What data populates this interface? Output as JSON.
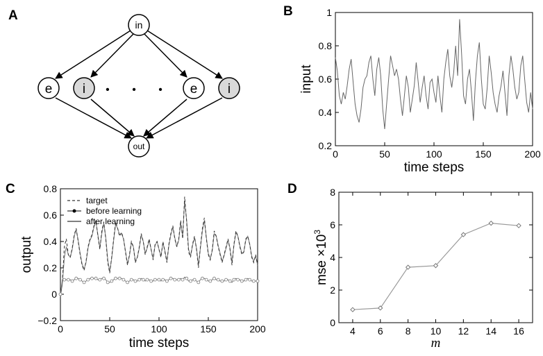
{
  "panels": {
    "a": {
      "letter": "A"
    },
    "b": {
      "letter": "B"
    },
    "c": {
      "letter": "C"
    },
    "d": {
      "letter": "D"
    }
  },
  "diagram": {
    "input_node": "in",
    "output_node": "out",
    "hidden_nodes": [
      "e",
      "i",
      "e",
      "i"
    ],
    "ellipsis": "• • •"
  },
  "chart_data": [
    {
      "id": "B",
      "type": "line",
      "xlabel": "time steps",
      "ylabel": "input",
      "xlim": [
        0,
        200
      ],
      "ylim": [
        0.2,
        1.0
      ],
      "xticks": [
        0,
        50,
        100,
        150,
        200
      ],
      "yticks": [
        0.2,
        0.4,
        0.6,
        0.8,
        1
      ],
      "ytick_labels": [
        "0.2",
        "0.4",
        "0.6",
        "0.8",
        "1"
      ],
      "series": [
        {
          "x": [
            0,
            2,
            4,
            6,
            8,
            10,
            12,
            14,
            16,
            18,
            20,
            22,
            24,
            26,
            28,
            30,
            32,
            34,
            36,
            38,
            40,
            42,
            44,
            46,
            48,
            50,
            52,
            54,
            56,
            58,
            60,
            62,
            64,
            66,
            68,
            70,
            72,
            74,
            76,
            78,
            80,
            82,
            84,
            86,
            88,
            90,
            92,
            94,
            96,
            98,
            100,
            102,
            104,
            106,
            108,
            110,
            112,
            114,
            116,
            118,
            120,
            122,
            124,
            126,
            128,
            130,
            132,
            134,
            136,
            138,
            140,
            142,
            144,
            146,
            148,
            150,
            152,
            154,
            156,
            158,
            160,
            162,
            164,
            166,
            168,
            170,
            172,
            174,
            176,
            178,
            180,
            182,
            184,
            186,
            188,
            190,
            192,
            194,
            196,
            198,
            200
          ],
          "y": [
            0.73,
            0.65,
            0.5,
            0.45,
            0.52,
            0.48,
            0.56,
            0.66,
            0.72,
            0.58,
            0.45,
            0.38,
            0.34,
            0.42,
            0.55,
            0.6,
            0.62,
            0.7,
            0.74,
            0.6,
            0.5,
            0.66,
            0.73,
            0.62,
            0.42,
            0.3,
            0.45,
            0.6,
            0.74,
            0.68,
            0.62,
            0.66,
            0.6,
            0.48,
            0.38,
            0.5,
            0.62,
            0.55,
            0.4,
            0.48,
            0.56,
            0.7,
            0.58,
            0.46,
            0.55,
            0.62,
            0.5,
            0.42,
            0.58,
            0.6,
            0.52,
            0.46,
            0.62,
            0.5,
            0.4,
            0.6,
            0.7,
            0.78,
            0.62,
            0.55,
            0.64,
            0.8,
            0.62,
            0.96,
            0.75,
            0.5,
            0.45,
            0.6,
            0.66,
            0.52,
            0.35,
            0.58,
            0.74,
            0.82,
            0.6,
            0.45,
            0.42,
            0.55,
            0.74,
            0.64,
            0.52,
            0.45,
            0.4,
            0.5,
            0.56,
            0.65,
            0.52,
            0.38,
            0.62,
            0.74,
            0.66,
            0.55,
            0.48,
            0.52,
            0.68,
            0.74,
            0.6,
            0.46,
            0.4,
            0.52,
            0.42
          ]
        }
      ]
    },
    {
      "id": "C",
      "type": "line",
      "xlabel": "time steps",
      "ylabel": "output",
      "xlim": [
        0,
        200
      ],
      "ylim": [
        -0.2,
        0.8
      ],
      "xticks": [
        0,
        50,
        100,
        150,
        200
      ],
      "yticks": [
        -0.2,
        0,
        0.2,
        0.4,
        0.6,
        0.8
      ],
      "ytick_labels": [
        "−0.2",
        "0",
        "0.2",
        "0.4",
        "0.6",
        "0.8"
      ],
      "legend_position": "top-left",
      "series": [
        {
          "name": "target",
          "style": "dashed",
          "x": [
            0,
            2,
            4,
            6,
            8,
            10,
            12,
            14,
            16,
            18,
            20,
            22,
            24,
            26,
            28,
            30,
            32,
            34,
            36,
            38,
            40,
            42,
            44,
            46,
            48,
            50,
            52,
            54,
            56,
            58,
            60,
            62,
            64,
            66,
            68,
            70,
            72,
            74,
            76,
            78,
            80,
            82,
            84,
            86,
            88,
            90,
            92,
            94,
            96,
            98,
            100,
            102,
            104,
            106,
            108,
            110,
            112,
            114,
            116,
            118,
            120,
            122,
            124,
            126,
            128,
            130,
            132,
            134,
            136,
            138,
            140,
            142,
            144,
            146,
            148,
            150,
            152,
            154,
            156,
            158,
            160,
            162,
            164,
            166,
            168,
            170,
            172,
            174,
            176,
            178,
            180,
            182,
            184,
            186,
            188,
            190,
            192,
            194,
            196,
            198,
            200
          ],
          "y": [
            -0.02,
            0.1,
            0.36,
            0.42,
            0.3,
            0.28,
            0.35,
            0.45,
            0.5,
            0.4,
            0.3,
            0.22,
            0.18,
            0.25,
            0.36,
            0.42,
            0.45,
            0.52,
            0.56,
            0.44,
            0.34,
            0.48,
            0.55,
            0.42,
            0.24,
            0.16,
            0.28,
            0.42,
            0.55,
            0.5,
            0.44,
            0.47,
            0.42,
            0.32,
            0.22,
            0.3,
            0.4,
            0.36,
            0.24,
            0.28,
            0.36,
            0.46,
            0.4,
            0.3,
            0.36,
            0.42,
            0.34,
            0.26,
            0.38,
            0.4,
            0.34,
            0.28,
            0.4,
            0.32,
            0.24,
            0.38,
            0.46,
            0.52,
            0.42,
            0.36,
            0.42,
            0.56,
            0.42,
            0.74,
            0.55,
            0.32,
            0.28,
            0.38,
            0.44,
            0.34,
            0.2,
            0.36,
            0.5,
            0.58,
            0.42,
            0.3,
            0.26,
            0.34,
            0.48,
            0.44,
            0.36,
            0.3,
            0.24,
            0.3,
            0.36,
            0.42,
            0.34,
            0.22,
            0.38,
            0.48,
            0.44,
            0.36,
            0.3,
            0.32,
            0.42,
            0.44,
            0.38,
            0.28,
            0.24,
            0.3,
            0.22
          ]
        },
        {
          "name": "before learning",
          "style": "solid-markers",
          "x": [
            0,
            2,
            4,
            6,
            8,
            10,
            12,
            14,
            16,
            18,
            20,
            22,
            24,
            26,
            28,
            30,
            32,
            34,
            36,
            38,
            40,
            42,
            44,
            46,
            48,
            50,
            52,
            54,
            56,
            58,
            60,
            62,
            64,
            66,
            68,
            70,
            72,
            74,
            76,
            78,
            80,
            82,
            84,
            86,
            88,
            90,
            92,
            94,
            96,
            98,
            100,
            102,
            104,
            106,
            108,
            110,
            112,
            114,
            116,
            118,
            120,
            122,
            124,
            126,
            128,
            130,
            132,
            134,
            136,
            138,
            140,
            142,
            144,
            146,
            148,
            150,
            152,
            154,
            156,
            158,
            160,
            162,
            164,
            166,
            168,
            170,
            172,
            174,
            176,
            178,
            180,
            182,
            184,
            186,
            188,
            190,
            192,
            194,
            196,
            198,
            200
          ],
          "y": [
            0.0,
            0.11,
            0.11,
            0.11,
            0.11,
            0.11,
            0.1,
            0.11,
            0.12,
            0.12,
            0.11,
            0.1,
            0.09,
            0.1,
            0.11,
            0.12,
            0.12,
            0.12,
            0.12,
            0.11,
            0.11,
            0.12,
            0.12,
            0.11,
            0.09,
            0.09,
            0.1,
            0.11,
            0.12,
            0.12,
            0.12,
            0.12,
            0.11,
            0.1,
            0.09,
            0.1,
            0.11,
            0.11,
            0.1,
            0.1,
            0.11,
            0.12,
            0.11,
            0.1,
            0.11,
            0.11,
            0.1,
            0.1,
            0.11,
            0.11,
            0.11,
            0.1,
            0.11,
            0.11,
            0.1,
            0.11,
            0.12,
            0.12,
            0.11,
            0.11,
            0.11,
            0.12,
            0.11,
            0.13,
            0.12,
            0.1,
            0.1,
            0.11,
            0.11,
            0.1,
            0.09,
            0.11,
            0.12,
            0.12,
            0.11,
            0.1,
            0.1,
            0.11,
            0.12,
            0.11,
            0.11,
            0.1,
            0.1,
            0.1,
            0.11,
            0.11,
            0.1,
            0.09,
            0.11,
            0.12,
            0.11,
            0.11,
            0.1,
            0.1,
            0.11,
            0.12,
            0.11,
            0.1,
            0.1,
            0.1,
            0.1
          ]
        },
        {
          "name": "after learning",
          "style": "solid",
          "x": [
            0,
            2,
            4,
            6,
            8,
            10,
            12,
            14,
            16,
            18,
            20,
            22,
            24,
            26,
            28,
            30,
            32,
            34,
            36,
            38,
            40,
            42,
            44,
            46,
            48,
            50,
            52,
            54,
            56,
            58,
            60,
            62,
            64,
            66,
            68,
            70,
            72,
            74,
            76,
            78,
            80,
            82,
            84,
            86,
            88,
            90,
            92,
            94,
            96,
            98,
            100,
            102,
            104,
            106,
            108,
            110,
            112,
            114,
            116,
            118,
            120,
            122,
            124,
            126,
            128,
            130,
            132,
            134,
            136,
            138,
            140,
            142,
            144,
            146,
            148,
            150,
            152,
            154,
            156,
            158,
            160,
            162,
            164,
            166,
            168,
            170,
            172,
            174,
            176,
            178,
            180,
            182,
            184,
            186,
            188,
            190,
            192,
            194,
            196,
            198,
            200
          ],
          "y": [
            -0.02,
            0.08,
            0.28,
            0.36,
            0.3,
            0.28,
            0.34,
            0.44,
            0.49,
            0.41,
            0.31,
            0.23,
            0.19,
            0.24,
            0.35,
            0.41,
            0.44,
            0.51,
            0.55,
            0.45,
            0.35,
            0.46,
            0.54,
            0.43,
            0.26,
            0.17,
            0.27,
            0.41,
            0.53,
            0.5,
            0.45,
            0.46,
            0.42,
            0.33,
            0.23,
            0.29,
            0.39,
            0.36,
            0.25,
            0.28,
            0.35,
            0.45,
            0.4,
            0.31,
            0.35,
            0.41,
            0.34,
            0.27,
            0.37,
            0.4,
            0.34,
            0.29,
            0.39,
            0.33,
            0.25,
            0.37,
            0.45,
            0.51,
            0.43,
            0.36,
            0.41,
            0.54,
            0.44,
            0.71,
            0.56,
            0.34,
            0.29,
            0.37,
            0.43,
            0.35,
            0.22,
            0.35,
            0.48,
            0.56,
            0.43,
            0.31,
            0.27,
            0.33,
            0.46,
            0.44,
            0.37,
            0.31,
            0.25,
            0.29,
            0.35,
            0.41,
            0.35,
            0.24,
            0.37,
            0.47,
            0.44,
            0.37,
            0.31,
            0.32,
            0.41,
            0.44,
            0.38,
            0.29,
            0.25,
            0.29,
            0.22
          ]
        }
      ]
    },
    {
      "id": "D",
      "type": "line",
      "xlabel": "m",
      "ylabel": "mse ×10",
      "ylabel_superscript": "3",
      "xlim": [
        3,
        17
      ],
      "ylim": [
        0,
        8
      ],
      "xticks": [
        4,
        6,
        8,
        10,
        12,
        14,
        16
      ],
      "yticks": [
        0,
        2,
        4,
        6,
        8
      ],
      "series": [
        {
          "x": [
            4,
            6,
            8,
            10,
            12,
            14,
            16
          ],
          "y": [
            0.8,
            0.9,
            3.4,
            3.5,
            5.4,
            6.1,
            5.95
          ]
        }
      ]
    }
  ]
}
